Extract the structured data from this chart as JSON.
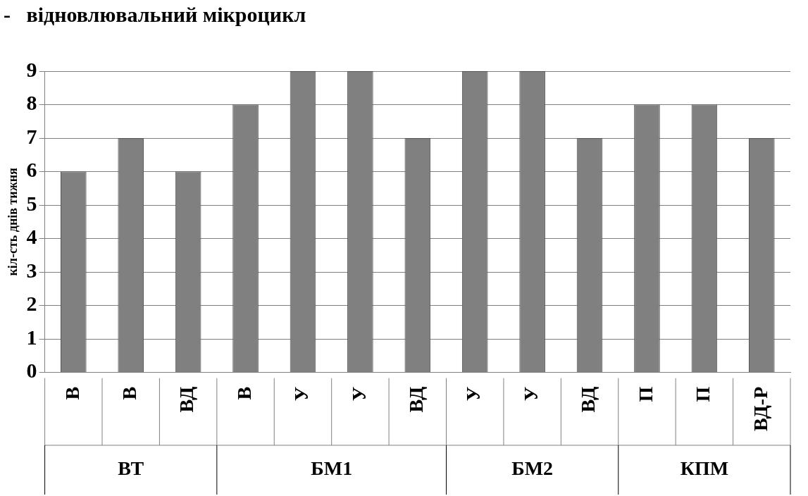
{
  "chart_data": {
    "type": "bar",
    "title": "-   відновлювальний мікроцикл",
    "ylabel": "кіл-сть днів тижня",
    "categories": [
      "В",
      "В",
      "ВД",
      "В",
      "У",
      "У",
      "ВД",
      "У",
      "У",
      "ВД",
      "П",
      "П",
      "ВД-Р"
    ],
    "values": [
      6,
      7,
      6,
      8,
      9,
      9,
      7,
      9,
      9,
      7,
      8,
      8,
      7
    ],
    "color": "#808080",
    "ylim": [
      0,
      9
    ],
    "yticks": [
      0,
      1,
      2,
      3,
      4,
      5,
      6,
      7,
      8,
      9
    ],
    "grid": "y",
    "legend": false,
    "annotations": [
      "ВТ",
      "БМ1",
      "БМ2",
      "КПМ"
    ]
  }
}
